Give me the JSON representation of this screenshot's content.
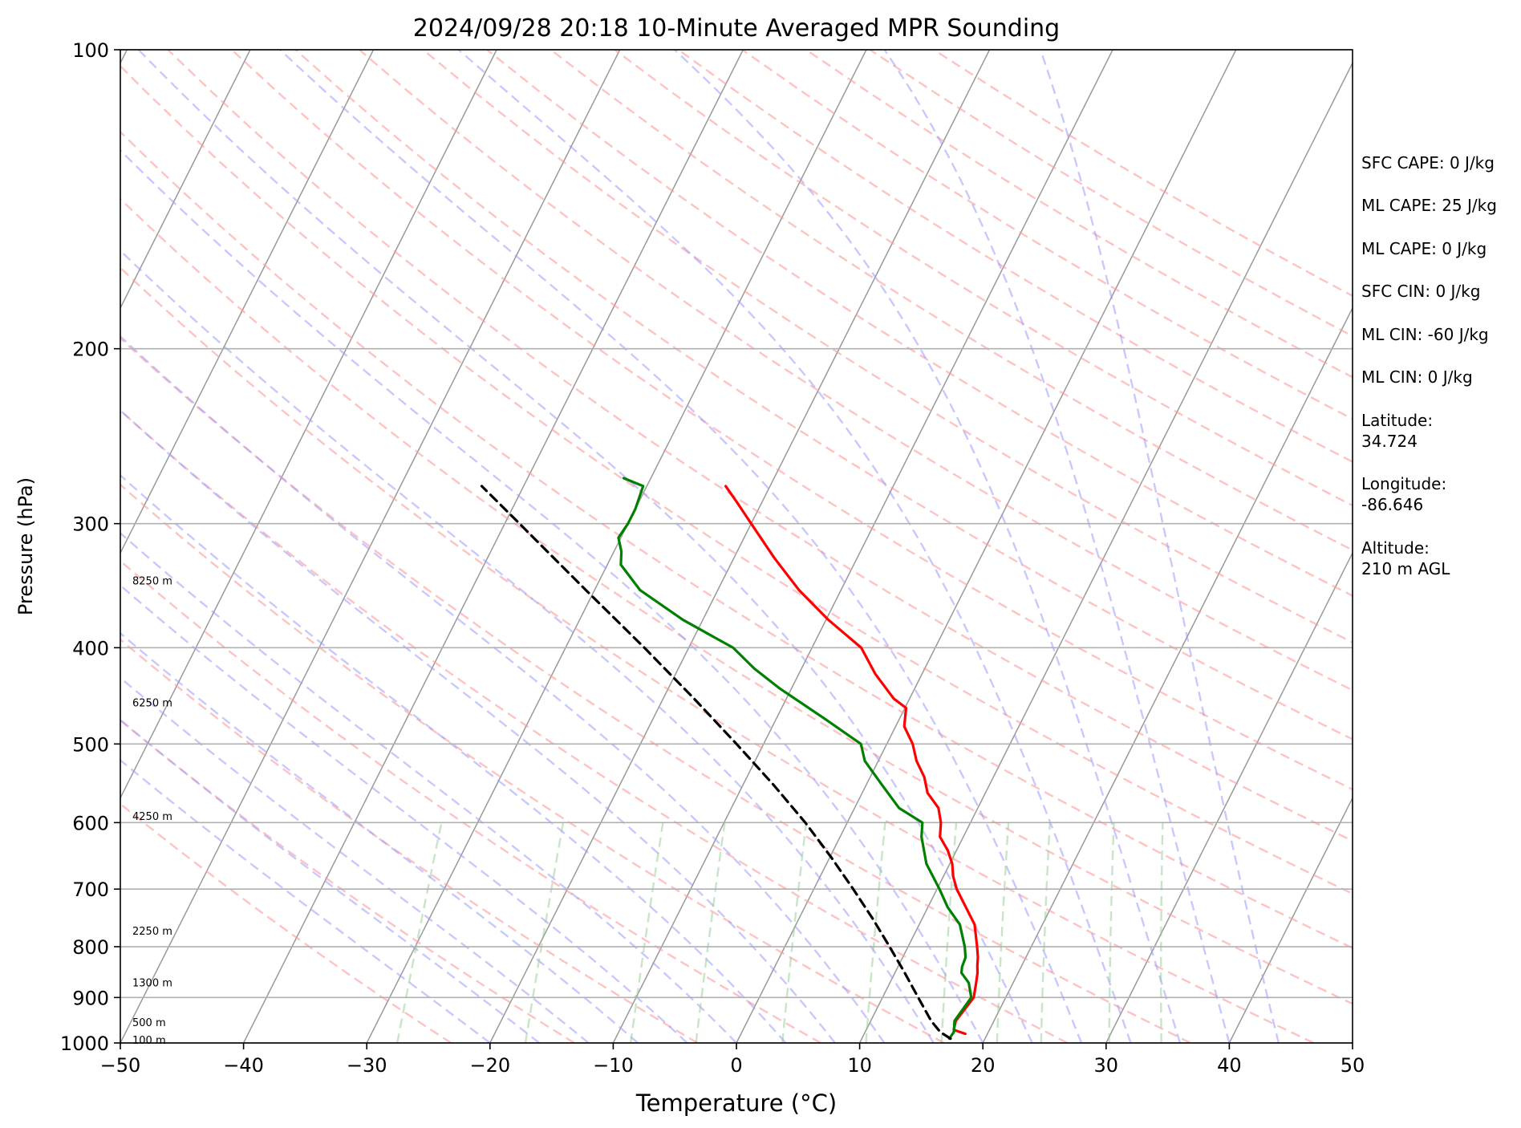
{
  "title": "2024/09/28 20:18 10-Minute Averaged MPR Sounding",
  "chart_data": {
    "type": "line",
    "subtype": "skew-T log-P",
    "title": "2024/09/28 20:18 10-Minute Averaged MPR Sounding",
    "xlabel": "Temperature (°C)",
    "ylabel": "Pressure (hPa)",
    "xlim": [
      -50,
      50
    ],
    "ylim": [
      1000,
      100
    ],
    "y_scale": "log",
    "x_ticks": [
      -50,
      -40,
      -30,
      -20,
      -10,
      0,
      10,
      20,
      30,
      40,
      50
    ],
    "x_tick_labels": [
      "−50",
      "−40",
      "−30",
      "−20",
      "−10",
      "0",
      "10",
      "20",
      "30",
      "40",
      "50"
    ],
    "y_ticks": [
      100,
      200,
      300,
      400,
      500,
      600,
      700,
      800,
      900,
      1000
    ],
    "y_tick_labels": [
      "100",
      "200",
      "300",
      "400",
      "500",
      "600",
      "700",
      "800",
      "900",
      "1000"
    ],
    "isotherm_spacing_c": 10,
    "grid": true,
    "reference_lines": {
      "dry_adiabats": {
        "color": "#ff9a9a",
        "style": "dashed"
      },
      "moist_adiabats": {
        "color": "#9a9aff",
        "style": "dashed"
      },
      "mixing_ratio": {
        "color": "#8fcc8f",
        "style": "dashed"
      },
      "isotherms": {
        "color": "#999999",
        "style": "solid"
      }
    },
    "series": [
      {
        "color": "#ff0000",
        "style": "solid",
        "points": [
          [
            979,
            18.2
          ],
          [
            970,
            17.1
          ],
          [
            950,
            16.9
          ],
          [
            900,
            17.4
          ],
          [
            870,
            17.0
          ],
          [
            850,
            16.7
          ],
          [
            836,
            16.4
          ],
          [
            820,
            16.1
          ],
          [
            800,
            15.6
          ],
          [
            760,
            14.5
          ],
          [
            700,
            11.6
          ],
          [
            680,
            10.8
          ],
          [
            660,
            10.2
          ],
          [
            640,
            9.3
          ],
          [
            620,
            8.1
          ],
          [
            600,
            7.6
          ],
          [
            580,
            6.8
          ],
          [
            560,
            5.3
          ],
          [
            540,
            4.4
          ],
          [
            520,
            3.1
          ],
          [
            500,
            2.1
          ],
          [
            480,
            0.7
          ],
          [
            460,
            0.1
          ],
          [
            450,
            -1.3
          ],
          [
            425,
            -3.8
          ],
          [
            400,
            -6.0
          ],
          [
            375,
            -9.8
          ],
          [
            350,
            -13.4
          ],
          [
            325,
            -16.7
          ],
          [
            300,
            -20.0
          ],
          [
            285,
            -22.1
          ],
          [
            275,
            -23.6
          ]
        ]
      },
      {
        "color": "#008000",
        "style": "solid",
        "points": [
          [
            990,
            17.1
          ],
          [
            975,
            17.2
          ],
          [
            950,
            16.8
          ],
          [
            900,
            17.2
          ],
          [
            870,
            16.4
          ],
          [
            850,
            15.4
          ],
          [
            838,
            15.2
          ],
          [
            820,
            15.1
          ],
          [
            800,
            14.6
          ],
          [
            760,
            13.3
          ],
          [
            730,
            11.6
          ],
          [
            700,
            10.2
          ],
          [
            660,
            8.1
          ],
          [
            620,
            6.6
          ],
          [
            600,
            6.1
          ],
          [
            580,
            3.6
          ],
          [
            550,
            1.3
          ],
          [
            520,
            -1.1
          ],
          [
            500,
            -2.1
          ],
          [
            470,
            -6.3
          ],
          [
            440,
            -10.9
          ],
          [
            420,
            -13.8
          ],
          [
            400,
            -16.4
          ],
          [
            375,
            -21.6
          ],
          [
            350,
            -26.3
          ],
          [
            330,
            -28.9
          ],
          [
            320,
            -29.4
          ],
          [
            310,
            -30.2
          ],
          [
            300,
            -30.0
          ],
          [
            290,
            -30.0
          ],
          [
            275,
            -30.3
          ],
          [
            270,
            -32.2
          ]
        ]
      },
      {
        "color": "#000000",
        "style": "dashed",
        "points": [
          [
            990,
            17.2
          ],
          [
            975,
            16.1
          ],
          [
            950,
            14.9
          ],
          [
            900,
            12.9
          ],
          [
            850,
            10.8
          ],
          [
            800,
            8.5
          ],
          [
            750,
            6.0
          ],
          [
            700,
            3.2
          ],
          [
            650,
            0.1
          ],
          [
            600,
            -3.4
          ],
          [
            550,
            -7.5
          ],
          [
            500,
            -12.2
          ],
          [
            450,
            -17.5
          ],
          [
            400,
            -23.6
          ],
          [
            350,
            -30.7
          ],
          [
            300,
            -38.8
          ],
          [
            275,
            -43.4
          ]
        ]
      }
    ],
    "height_labels": [
      {
        "label": "8250 m",
        "pressure": 343
      },
      {
        "label": "6250 m",
        "pressure": 455
      },
      {
        "label": "4250 m",
        "pressure": 592
      },
      {
        "label": "2250 m",
        "pressure": 772
      },
      {
        "label": "1300 m",
        "pressure": 871
      },
      {
        "label": "500 m",
        "pressure": 955
      },
      {
        "label": "100 m",
        "pressure": 994
      }
    ]
  },
  "side_panel": {
    "lines": [
      "SFC CAPE: 0 J/kg",
      "ML CAPE: 25 J/kg",
      "ML CAPE: 0 J/kg",
      "SFC CIN: 0 J/kg",
      "ML CIN: -60 J/kg",
      "ML CIN: 0 J/kg",
      "Latitude:",
      "34.724",
      "Longitude:",
      "-86.646",
      "Altitude:",
      "210 m AGL"
    ]
  }
}
